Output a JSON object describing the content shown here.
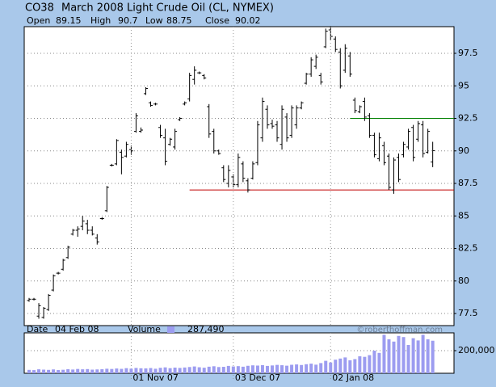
{
  "symbol": "CO38",
  "title": "March 2008 Light Crude Oil (CL, NYMEX)",
  "ohlc_labels": {
    "open": "Open",
    "high": "High",
    "low": "Low",
    "close": "Close"
  },
  "status": {
    "date_label": "Date",
    "date": "04 Feb 08",
    "volume_label": "Volume",
    "volume": "287,490"
  },
  "watermark": "©roberthoffman.com",
  "chart_data": [
    {
      "type": "ohlc",
      "color": "#000000",
      "categories": [
        null,
        null,
        null,
        null,
        null,
        null,
        null,
        null,
        null,
        null,
        null,
        null,
        null,
        null,
        null,
        null,
        null,
        null,
        null,
        null,
        null,
        "01 Nov 07",
        null,
        null,
        null,
        null,
        null,
        null,
        null,
        null,
        null,
        null,
        null,
        null,
        null,
        null,
        null,
        null,
        null,
        null,
        null,
        null,
        "03 Dec 07",
        null,
        null,
        null,
        null,
        null,
        null,
        null,
        null,
        null,
        null,
        null,
        null,
        null,
        null,
        null,
        null,
        null,
        null,
        null,
        "02 Jan 08",
        null,
        null,
        null,
        null,
        null,
        null,
        null,
        null,
        null,
        null,
        null,
        null,
        null,
        null,
        null,
        null,
        null,
        null,
        null,
        null,
        null
      ],
      "open": [
        78.5,
        78.6,
        77.3,
        77.2,
        77.8,
        79.3,
        80.6,
        80.9,
        81.8,
        83.6,
        83.9,
        84.2,
        84.4,
        83.9,
        83.3,
        84.8,
        85.4,
        88.9,
        89.0,
        89.9,
        89.6,
        90.1,
        91.5,
        91.5,
        94.4,
        93.7,
        93.6,
        91.8,
        91.0,
        90.5,
        90.3,
        92.4,
        93.6,
        94.0,
        95.5,
        96.0,
        95.8,
        93.4,
        91.5,
        90.0,
        88.7,
        87.5,
        88.0,
        87.4,
        89.0,
        87.7,
        87.9,
        89.1,
        91.0,
        93.2,
        92.1,
        92.0,
        90.5,
        92.6,
        91.2,
        92.0,
        93.3,
        95.2,
        95.9,
        96.5,
        95.8,
        98.0,
        99.3,
        98.6,
        97.6,
        96.2,
        97.3,
        93.9,
        93.0,
        93.8,
        92.7,
        91.2,
        89.4,
        90.4,
        89.6,
        87.0,
        89.5,
        89.7,
        90.3,
        91.8,
        90.9,
        92.0,
        89.9,
        89.15
      ],
      "high": [
        78.7,
        78.7,
        78.3,
        78.0,
        79.0,
        80.5,
        80.7,
        81.7,
        82.7,
        84.0,
        84.2,
        85.0,
        84.7,
        84.2,
        83.6,
        84.9,
        87.3,
        89.0,
        90.9,
        90.1,
        90.7,
        90.4,
        92.9,
        91.8,
        94.9,
        93.8,
        93.7,
        92.0,
        91.7,
        91.0,
        91.7,
        92.6,
        93.8,
        96.0,
        96.5,
        96.1,
        95.9,
        93.6,
        91.7,
        90.1,
        88.9,
        88.9,
        88.2,
        89.8,
        89.2,
        87.9,
        89.2,
        92.3,
        94.1,
        93.5,
        92.4,
        92.3,
        93.5,
        92.9,
        93.5,
        93.5,
        93.8,
        96.0,
        97.2,
        97.4,
        96.0,
        99.4,
        99.6,
        98.8,
        97.9,
        98.2,
        97.6,
        94.1,
        93.5,
        94.1,
        92.9,
        91.4,
        91.4,
        90.7,
        89.8,
        89.5,
        89.8,
        90.7,
        91.7,
        92.0,
        92.3,
        92.3,
        91.7,
        90.7
      ],
      "low": [
        78.4,
        78.5,
        77.1,
        77.1,
        77.7,
        79.2,
        80.5,
        80.8,
        81.7,
        83.5,
        83.4,
        83.9,
        83.6,
        83.5,
        82.8,
        84.7,
        85.3,
        88.8,
        88.9,
        88.2,
        89.5,
        89.7,
        91.4,
        91.4,
        94.3,
        93.4,
        93.5,
        91.0,
        88.9,
        90.4,
        90.1,
        92.3,
        93.5,
        93.8,
        95.1,
        95.9,
        95.5,
        91.0,
        89.8,
        89.7,
        87.6,
        87.2,
        87.2,
        87.2,
        87.6,
        86.8,
        87.8,
        88.9,
        90.7,
        91.7,
        91.7,
        90.7,
        90.1,
        90.7,
        91.0,
        91.7,
        93.2,
        95.1,
        95.7,
        96.3,
        95.1,
        97.9,
        98.5,
        97.6,
        94.8,
        96.0,
        95.7,
        92.9,
        92.9,
        92.3,
        91.0,
        89.5,
        89.2,
        88.9,
        87.0,
        86.7,
        87.6,
        89.5,
        90.1,
        89.2,
        90.7,
        89.5,
        89.8,
        88.75
      ],
      "close": [
        78.6,
        78.6,
        78.1,
        77.9,
        78.9,
        80.4,
        80.6,
        81.6,
        82.6,
        83.9,
        84.0,
        84.6,
        83.9,
        83.6,
        83.0,
        84.8,
        87.2,
        88.9,
        90.8,
        89.5,
        90.5,
        90.0,
        92.7,
        91.6,
        94.8,
        93.5,
        93.6,
        91.2,
        89.2,
        90.9,
        91.5,
        92.5,
        93.7,
        95.8,
        96.2,
        96.0,
        95.6,
        91.3,
        90.0,
        89.8,
        87.8,
        88.5,
        87.4,
        89.5,
        87.9,
        87.0,
        89.0,
        92.0,
        93.8,
        92.0,
        91.9,
        91.0,
        93.2,
        91.0,
        93.3,
        93.3,
        93.7,
        95.9,
        97.0,
        97.2,
        95.3,
        99.2,
        98.8,
        97.8,
        95.0,
        97.9,
        95.9,
        93.1,
        93.4,
        92.6,
        91.2,
        89.7,
        91.0,
        89.1,
        87.2,
        89.3,
        87.8,
        90.5,
        91.5,
        89.5,
        92.1,
        89.8,
        91.5,
        90.02
      ],
      "ylim": [
        76.57,
        99.55
      ],
      "yticks": [
        77.5,
        80,
        82.5,
        85,
        87.5,
        90,
        92.5,
        95,
        97.5
      ],
      "grid": true,
      "hlines": [
        {
          "value": 87,
          "color": "#c00000",
          "start_index": 33
        },
        {
          "value": 92.5,
          "color": "#008000",
          "start_index": 66
        }
      ]
    },
    {
      "type": "bar",
      "name": "Volume",
      "color": "#9c9cf0",
      "values": [
        30000,
        28000,
        35000,
        32000,
        30000,
        34000,
        29000,
        31000,
        36000,
        33000,
        38000,
        35000,
        37000,
        32000,
        34000,
        36000,
        40000,
        38000,
        42000,
        39000,
        45000,
        41000,
        47000,
        44000,
        43000,
        46000,
        40000,
        48000,
        52000,
        45000,
        50000,
        47000,
        51000,
        55000,
        60000,
        53000,
        49000,
        58000,
        62000,
        55000,
        57000,
        65000,
        60000,
        63000,
        58000,
        66000,
        70000,
        68000,
        72000,
        65000,
        69000,
        74000,
        71000,
        67000,
        75000,
        78000,
        73000,
        80000,
        85000,
        76000,
        90000,
        110000,
        95000,
        120000,
        130000,
        140000,
        115000,
        125000,
        150000,
        145000,
        160000,
        200000,
        180000,
        340000,
        300000,
        280000,
        330000,
        320000,
        250000,
        310000,
        290000,
        340000,
        300000,
        287490
      ],
      "ylim": [
        0,
        357000
      ],
      "yticks": [
        {
          "value": 200000,
          "label": "200,000"
        }
      ],
      "grid": true
    }
  ]
}
